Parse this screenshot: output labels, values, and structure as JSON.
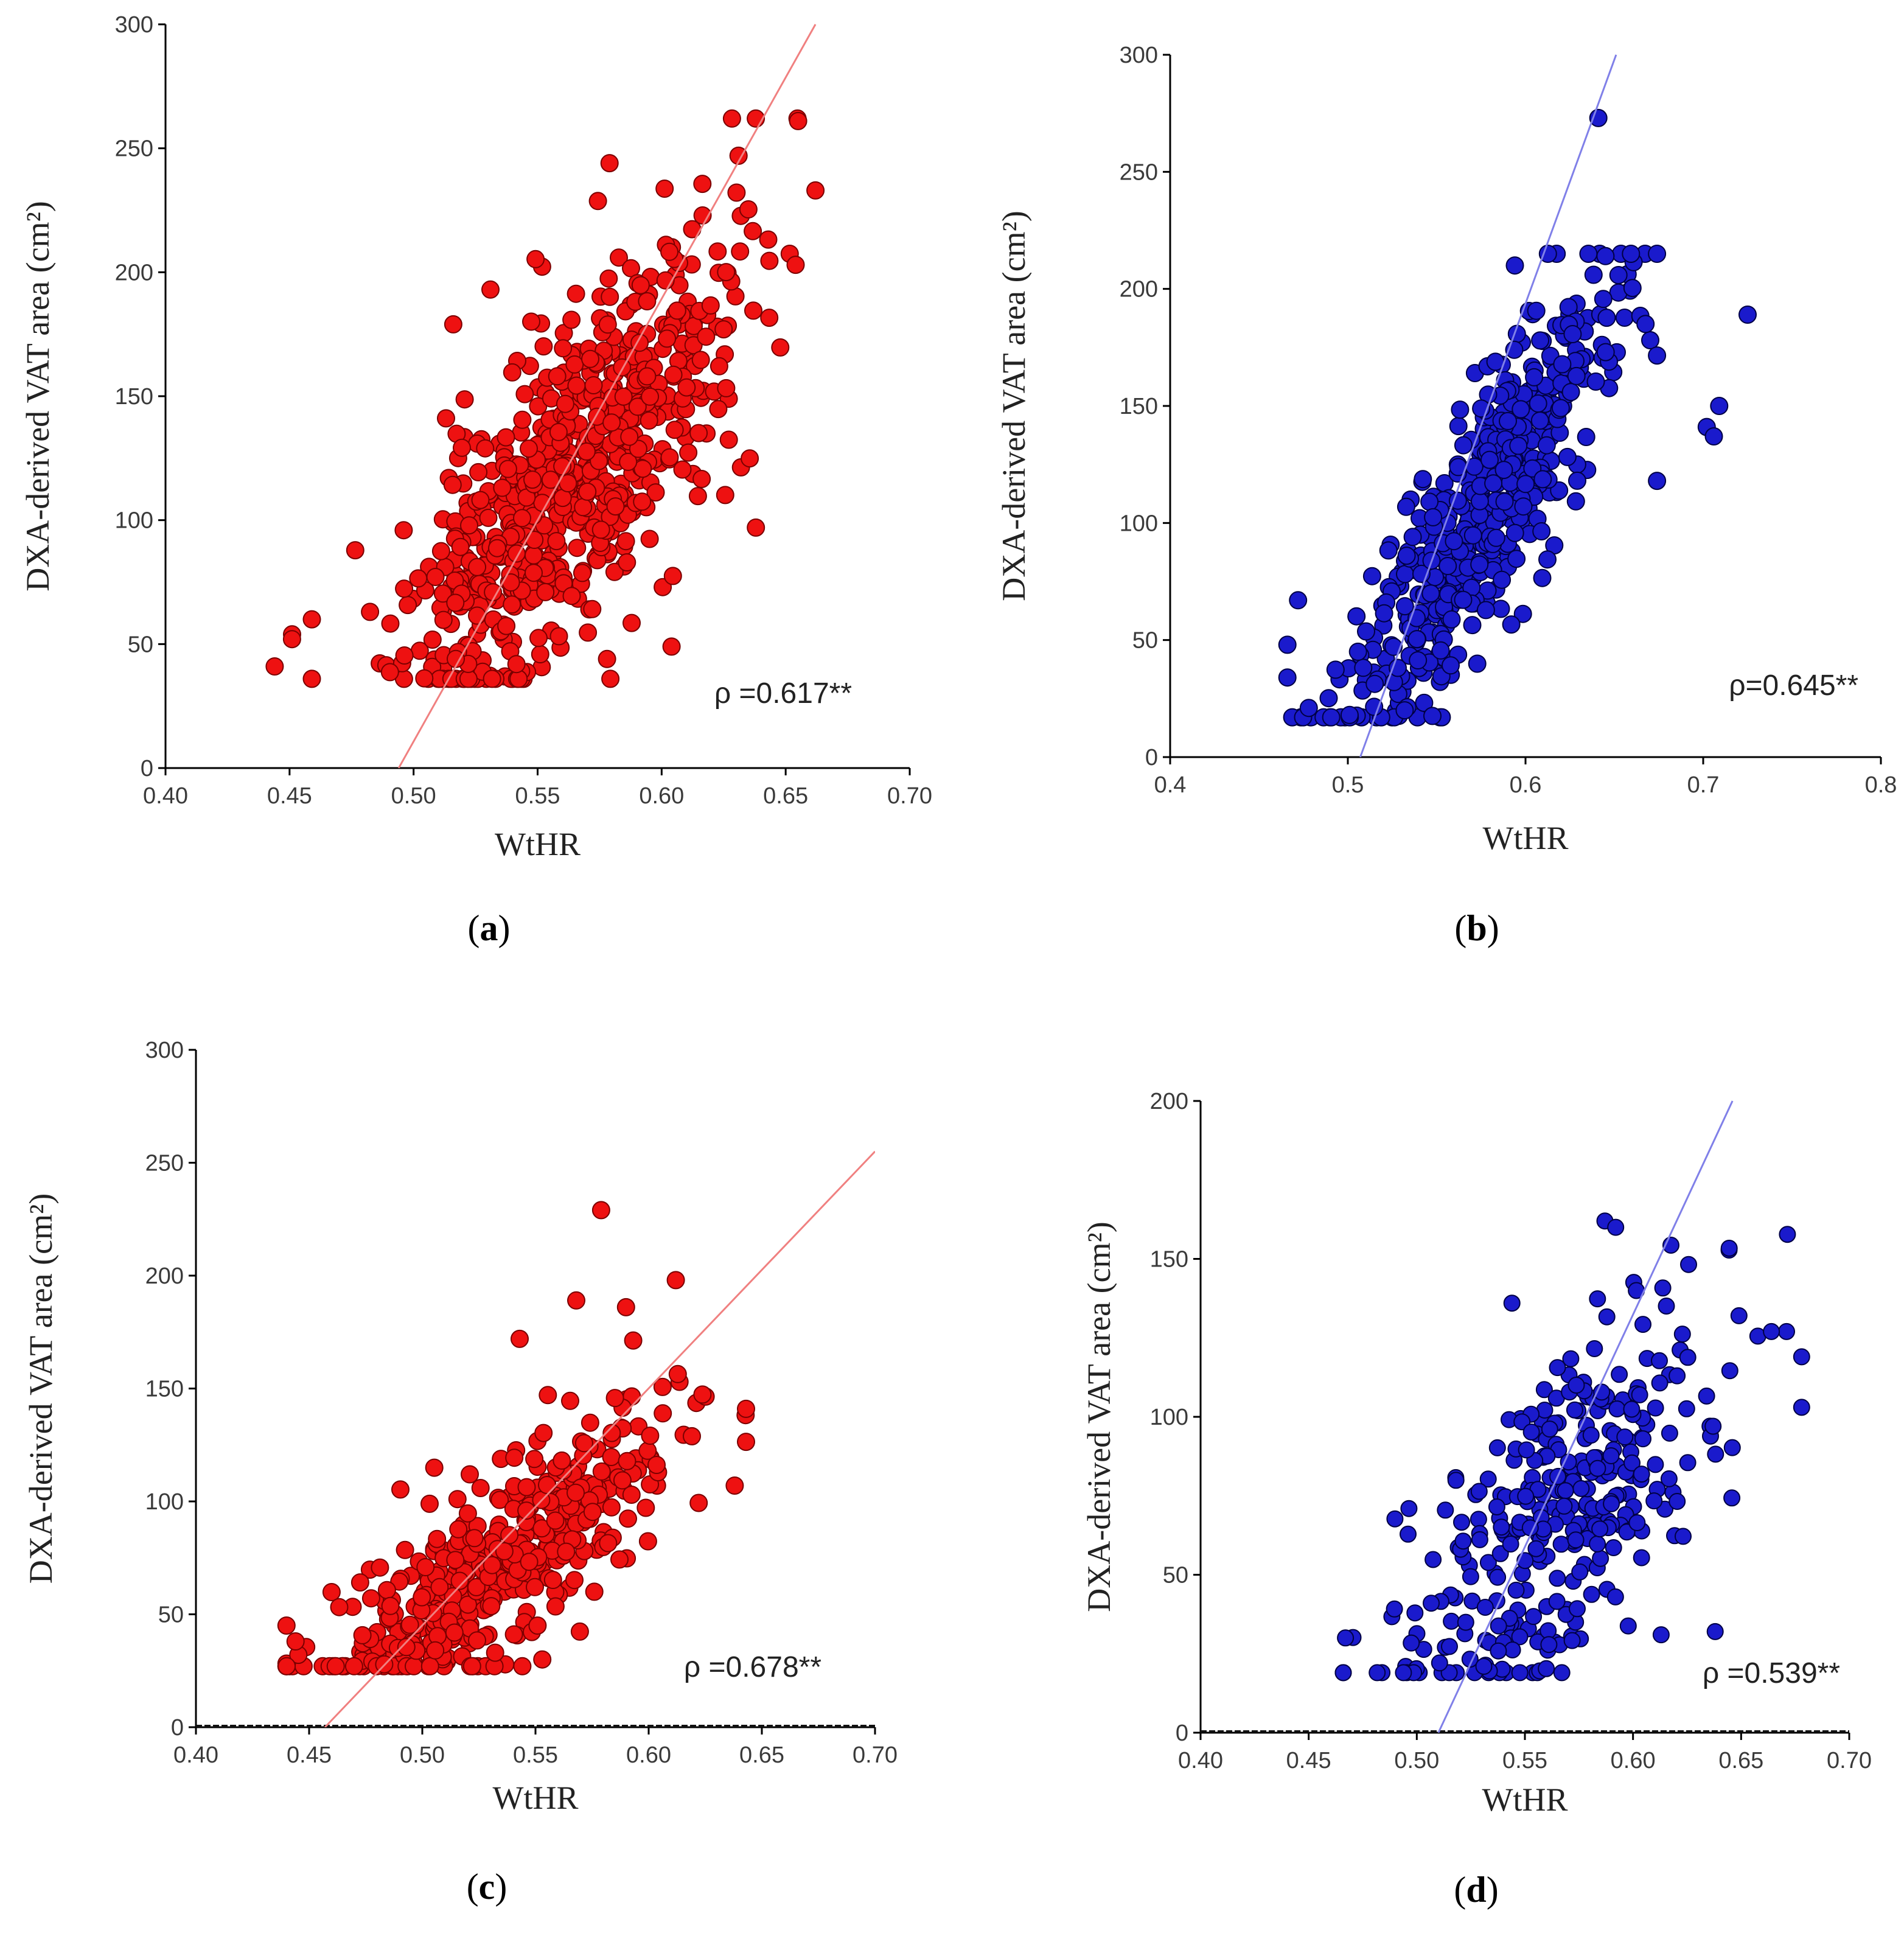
{
  "chart_data": [
    {
      "type": "scatter",
      "panel": "a",
      "caption_letter": "a",
      "xlabel": "WtHR",
      "ylabel": "DXA-derived VAT area (cm²)",
      "x_ticks": [
        "0.40",
        "0.45",
        "0.50",
        "0.55",
        "0.60",
        "0.65",
        "0.70"
      ],
      "y_ticks": [
        "0",
        "50",
        "100",
        "150",
        "200",
        "250",
        "300"
      ],
      "xlim": [
        0.4,
        0.7
      ],
      "ylim": [
        0,
        300
      ],
      "correlation_label": "ρ =0.617**",
      "point_color": "#ee1111",
      "line_color": "#f08080",
      "fit_line": {
        "x": [
          0.494,
          0.662
        ],
        "y": [
          0,
          300
        ]
      },
      "zero_line": false,
      "n_points": 700,
      "cloud": {
        "x_mean": 0.562,
        "x_sd": 0.032,
        "x_min": 0.444,
        "x_max": 0.664,
        "slope": 980,
        "intercept": -434,
        "resid_sd": 32,
        "y_min": 36,
        "y_max": 262,
        "seed": 11
      },
      "points": [
        {
          "x": 0.444,
          "y": 41
        },
        {
          "x": 0.451,
          "y": 52
        },
        {
          "x": 0.459,
          "y": 36
        },
        {
          "x": 0.459,
          "y": 60
        },
        {
          "x": 0.579,
          "y": 244
        },
        {
          "x": 0.631,
          "y": 247
        },
        {
          "x": 0.655,
          "y": 261
        },
        {
          "x": 0.662,
          "y": 233
        },
        {
          "x": 0.654,
          "y": 203
        },
        {
          "x": 0.638,
          "y": 97
        },
        {
          "x": 0.604,
          "y": 49
        },
        {
          "x": 0.578,
          "y": 44
        },
        {
          "x": 0.522,
          "y": 42
        },
        {
          "x": 0.517,
          "y": 44
        },
        {
          "x": 0.531,
          "y": 193
        },
        {
          "x": 0.516,
          "y": 179
        }
      ]
    },
    {
      "type": "scatter",
      "panel": "b",
      "caption_letter": "b",
      "xlabel": "WtHR",
      "ylabel": "DXA-derived VAT area (cm²)",
      "x_ticks": [
        "0.4",
        "0.5",
        "0.6",
        "0.7",
        "0.8"
      ],
      "y_ticks": [
        "0",
        "50",
        "100",
        "150",
        "200",
        "250",
        "300"
      ],
      "xlim": [
        0.4,
        0.8
      ],
      "ylim": [
        0,
        300
      ],
      "correlation_label": "ρ=0.645**",
      "point_color": "#1a1acc",
      "line_color": "#8080e8",
      "fit_line": {
        "x": [
          0.507,
          0.651
        ],
        "y": [
          0,
          300
        ]
      },
      "zero_line": false,
      "n_points": 500,
      "cloud": {
        "x_mean": 0.572,
        "x_sd": 0.036,
        "x_min": 0.466,
        "x_max": 0.674,
        "slope": 1130,
        "intercept": -548,
        "resid_sd": 26,
        "y_min": 17,
        "y_max": 215,
        "seed": 23
      },
      "points": [
        {
          "x": 0.466,
          "y": 48
        },
        {
          "x": 0.466,
          "y": 34
        },
        {
          "x": 0.478,
          "y": 21
        },
        {
          "x": 0.472,
          "y": 67
        },
        {
          "x": 0.641,
          "y": 273
        },
        {
          "x": 0.725,
          "y": 189
        },
        {
          "x": 0.709,
          "y": 150
        },
        {
          "x": 0.702,
          "y": 141
        },
        {
          "x": 0.706,
          "y": 137
        },
        {
          "x": 0.674,
          "y": 118
        },
        {
          "x": 0.594,
          "y": 210
        },
        {
          "x": 0.645,
          "y": 214
        },
        {
          "x": 0.532,
          "y": 20
        },
        {
          "x": 0.501,
          "y": 18
        }
      ]
    },
    {
      "type": "scatter",
      "panel": "c",
      "caption_letter": "c",
      "xlabel": "WtHR",
      "ylabel": "DXA-derived VAT area (cm²)",
      "x_ticks": [
        "0.40",
        "0.45",
        "0.50",
        "0.55",
        "0.60",
        "0.65",
        "0.70"
      ],
      "y_ticks": [
        "0",
        "50",
        "100",
        "150",
        "200",
        "250",
        "300"
      ],
      "xlim": [
        0.4,
        0.7
      ],
      "ylim": [
        0,
        300
      ],
      "correlation_label": "ρ =0.678**",
      "point_color": "#ee1111",
      "line_color": "#f08080",
      "fit_line": {
        "x": [
          0.457,
          0.7
        ],
        "y": [
          0,
          255
        ]
      },
      "zero_line": true,
      "n_points": 450,
      "cloud": {
        "x_mean": 0.535,
        "x_sd": 0.038,
        "x_min": 0.44,
        "x_max": 0.643,
        "slope": 700,
        "intercept": -300,
        "resid_sd": 20,
        "y_min": 27,
        "y_max": 198,
        "seed": 37
      },
      "points": [
        {
          "x": 0.44,
          "y": 45
        },
        {
          "x": 0.444,
          "y": 38
        },
        {
          "x": 0.579,
          "y": 229
        },
        {
          "x": 0.612,
          "y": 198
        },
        {
          "x": 0.568,
          "y": 189
        },
        {
          "x": 0.59,
          "y": 186
        },
        {
          "x": 0.543,
          "y": 172
        },
        {
          "x": 0.643,
          "y": 141
        },
        {
          "x": 0.638,
          "y": 107
        },
        {
          "x": 0.553,
          "y": 30
        },
        {
          "x": 0.522,
          "y": 27
        },
        {
          "x": 0.576,
          "y": 60
        }
      ]
    },
    {
      "type": "scatter",
      "panel": "d",
      "caption_letter": "d",
      "xlabel": "WtHR",
      "ylabel": "DXA-derived VAT area (cm²)",
      "x_ticks": [
        "0.40",
        "0.45",
        "0.50",
        "0.55",
        "0.60",
        "0.65",
        "0.70"
      ],
      "y_ticks": [
        "0",
        "50",
        "100",
        "150",
        "200"
      ],
      "xlim": [
        0.4,
        0.7
      ],
      "ylim": [
        0,
        200
      ],
      "correlation_label": "ρ =0.539**",
      "point_color": "#1a1acc",
      "line_color": "#8080e8",
      "fit_line": {
        "x": [
          0.51,
          0.646
        ],
        "y": [
          0,
          200
        ]
      },
      "zero_line": true,
      "n_points": 330,
      "cloud": {
        "x_mean": 0.565,
        "x_sd": 0.035,
        "x_min": 0.466,
        "x_max": 0.678,
        "slope": 520,
        "intercept": -225,
        "resid_sd": 24,
        "y_min": 19,
        "y_max": 162,
        "seed": 53
      },
      "points": [
        {
          "x": 0.466,
          "y": 19
        },
        {
          "x": 0.467,
          "y": 30
        },
        {
          "x": 0.587,
          "y": 162
        },
        {
          "x": 0.592,
          "y": 160
        },
        {
          "x": 0.678,
          "y": 103
        },
        {
          "x": 0.671,
          "y": 127
        },
        {
          "x": 0.664,
          "y": 127
        },
        {
          "x": 0.649,
          "y": 132
        },
        {
          "x": 0.638,
          "y": 32
        },
        {
          "x": 0.613,
          "y": 31
        },
        {
          "x": 0.531,
          "y": 21
        },
        {
          "x": 0.544,
          "y": 136
        }
      ]
    }
  ]
}
